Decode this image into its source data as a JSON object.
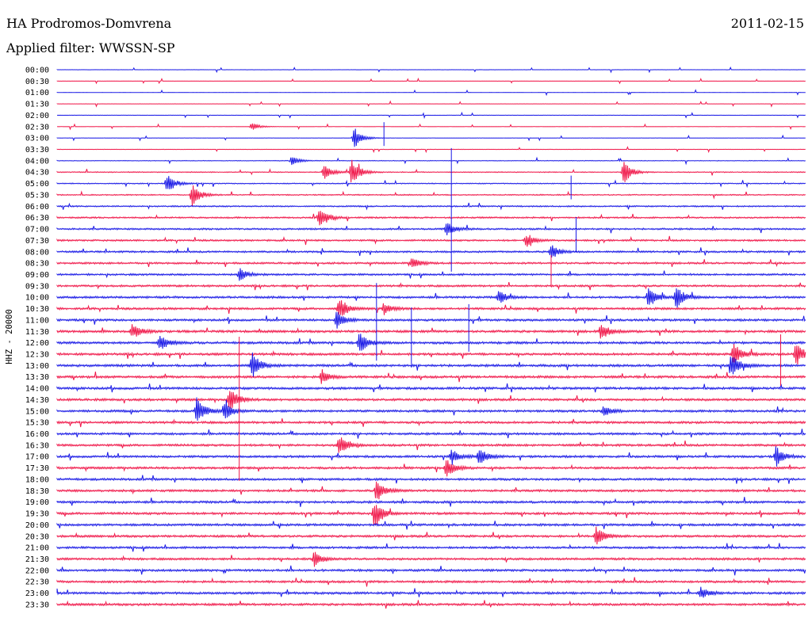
{
  "header": {
    "station": "HA Prodromos-Domvrena",
    "date": "2011-02-15",
    "filter": "Applied filter: WWSSN-SP"
  },
  "chart_data": {
    "type": "line",
    "ylabel": "HHZ - 20000",
    "x_range_minutes": [
      0,
      30
    ],
    "grid": false,
    "legend": "none",
    "row_colors": [
      "#1a1ae6",
      "#f0184a"
    ],
    "rows": [
      "00:00",
      "00:30",
      "01:00",
      "01:30",
      "02:00",
      "02:30",
      "03:00",
      "03:30",
      "04:00",
      "04:30",
      "05:00",
      "05:30",
      "06:00",
      "06:30",
      "07:00",
      "07:30",
      "08:00",
      "08:30",
      "09:00",
      "09:30",
      "10:00",
      "10:30",
      "11:00",
      "11:30",
      "12:00",
      "12:30",
      "13:00",
      "13:30",
      "14:00",
      "14:30",
      "15:00",
      "15:30",
      "16:00",
      "16:30",
      "17:00",
      "17:30",
      "18:00",
      "18:30",
      "19:00",
      "19:30",
      "20:00",
      "20:30",
      "21:00",
      "21:30",
      "22:00",
      "22:30",
      "23:00",
      "23:30"
    ],
    "noise_level": [
      0.05,
      0.05,
      0.05,
      0.06,
      0.06,
      0.06,
      0.06,
      0.09,
      0.17,
      0.24,
      0.27,
      0.3,
      0.38,
      0.44,
      0.46,
      0.48,
      0.5,
      0.5,
      0.52,
      0.55,
      0.58,
      0.6,
      0.6,
      0.65,
      0.65,
      0.65,
      0.65,
      0.65,
      0.65,
      0.62,
      0.62,
      0.62,
      0.6,
      0.6,
      0.6,
      0.6,
      0.6,
      0.6,
      0.62,
      0.62,
      0.62,
      0.6,
      0.58,
      0.6,
      0.6,
      0.6,
      0.62,
      0.62
    ],
    "events": [
      {
        "row": 5,
        "minute": 7.8,
        "amplitude": 5
      },
      {
        "row": 6,
        "minute": 11.9,
        "amplitude": 14
      },
      {
        "row": 8,
        "minute": 9.4,
        "amplitude": 6
      },
      {
        "row": 9,
        "minute": 11.8,
        "amplitude": 18
      },
      {
        "row": 9,
        "minute": 10.7,
        "amplitude": 10
      },
      {
        "row": 9,
        "minute": 22.7,
        "amplitude": 14
      },
      {
        "row": 10,
        "minute": 4.4,
        "amplitude": 12
      },
      {
        "row": 11,
        "minute": 5.4,
        "amplitude": 14
      },
      {
        "row": 13,
        "minute": 10.5,
        "amplitude": 16
      },
      {
        "row": 14,
        "minute": 15.6,
        "amplitude": 9
      },
      {
        "row": 15,
        "minute": 18.8,
        "amplitude": 8
      },
      {
        "row": 16,
        "minute": 19.8,
        "amplitude": 9
      },
      {
        "row": 17,
        "minute": 14.2,
        "amplitude": 7
      },
      {
        "row": 18,
        "minute": 7.3,
        "amplitude": 8
      },
      {
        "row": 20,
        "minute": 23.7,
        "amplitude": 14
      },
      {
        "row": 20,
        "minute": 24.8,
        "amplitude": 15
      },
      {
        "row": 20,
        "minute": 17.7,
        "amplitude": 8
      },
      {
        "row": 21,
        "minute": 11.3,
        "amplitude": 14
      },
      {
        "row": 21,
        "minute": 13.1,
        "amplitude": 8
      },
      {
        "row": 22,
        "minute": 11.2,
        "amplitude": 10
      },
      {
        "row": 23,
        "minute": 3.0,
        "amplitude": 10
      },
      {
        "row": 23,
        "minute": 21.8,
        "amplitude": 10
      },
      {
        "row": 24,
        "minute": 4.1,
        "amplitude": 10
      },
      {
        "row": 24,
        "minute": 12.1,
        "amplitude": 13
      },
      {
        "row": 25,
        "minute": 27.1,
        "amplitude": 14
      },
      {
        "row": 25,
        "minute": 29.6,
        "amplitude": 16
      },
      {
        "row": 26,
        "minute": 7.8,
        "amplitude": 16
      },
      {
        "row": 26,
        "minute": 27.0,
        "amplitude": 16
      },
      {
        "row": 27,
        "minute": 10.6,
        "amplitude": 8
      },
      {
        "row": 29,
        "minute": 6.9,
        "amplitude": 17
      },
      {
        "row": 30,
        "minute": 5.6,
        "amplitude": 18
      },
      {
        "row": 30,
        "minute": 6.7,
        "amplitude": 12
      },
      {
        "row": 30,
        "minute": 21.9,
        "amplitude": 7
      },
      {
        "row": 33,
        "minute": 11.3,
        "amplitude": 12
      },
      {
        "row": 34,
        "minute": 15.8,
        "amplitude": 9
      },
      {
        "row": 34,
        "minute": 16.9,
        "amplitude": 11
      },
      {
        "row": 34,
        "minute": 28.8,
        "amplitude": 12
      },
      {
        "row": 35,
        "minute": 15.6,
        "amplitude": 12
      },
      {
        "row": 37,
        "minute": 12.8,
        "amplitude": 14
      },
      {
        "row": 39,
        "minute": 12.7,
        "amplitude": 18
      },
      {
        "row": 41,
        "minute": 21.6,
        "amplitude": 11
      },
      {
        "row": 43,
        "minute": 10.3,
        "amplitude": 10
      },
      {
        "row": 46,
        "minute": 25.8,
        "amplitude": 7
      }
    ],
    "spikes": [
      {
        "row": 6,
        "minute": 13.1,
        "up": 20,
        "down": 10
      },
      {
        "row": 8,
        "minute": 15.8,
        "up": 16,
        "down": 140
      },
      {
        "row": 10,
        "minute": 20.6,
        "up": 10,
        "down": 20
      },
      {
        "row": 14,
        "minute": 20.8,
        "up": 15,
        "down": 30
      },
      {
        "row": 17,
        "minute": 19.8,
        "up": 10,
        "down": 30
      },
      {
        "row": 20,
        "minute": 12.8,
        "up": 18,
        "down": 80
      },
      {
        "row": 22,
        "minute": 14.2,
        "up": 16,
        "down": 60
      },
      {
        "row": 22,
        "minute": 16.5,
        "up": 20,
        "down": 40
      },
      {
        "row": 25,
        "minute": 7.3,
        "up": 22,
        "down": 160
      },
      {
        "row": 25,
        "minute": 29.0,
        "up": 25,
        "down": 40
      }
    ]
  }
}
